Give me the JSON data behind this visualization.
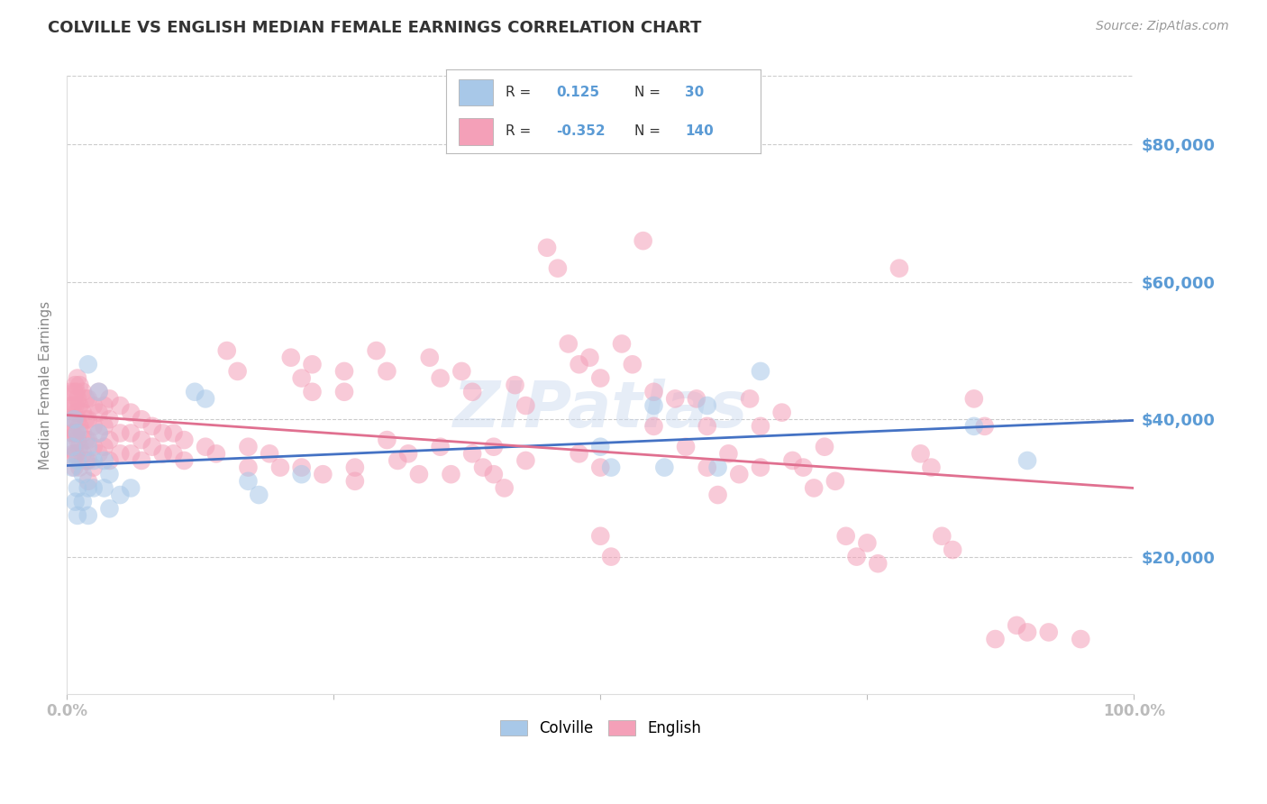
{
  "title": "COLVILLE VS ENGLISH MEDIAN FEMALE EARNINGS CORRELATION CHART",
  "source": "Source: ZipAtlas.com",
  "ylabel": "Median Female Earnings",
  "ytick_labels": [
    "$20,000",
    "$40,000",
    "$60,000",
    "$80,000"
  ],
  "ytick_values": [
    20000,
    40000,
    60000,
    80000
  ],
  "ylim": [
    0,
    90000
  ],
  "xlim": [
    0.0,
    1.0
  ],
  "colville_color": "#a8c8e8",
  "english_color": "#f4a0b8",
  "colville_line_color": "#4472c4",
  "english_line_color": "#e07090",
  "axis_label_color": "#5b9bd5",
  "grid_color": "#cccccc",
  "background_color": "#ffffff",
  "title_color": "#333333",
  "source_color": "#999999",
  "ylabel_color": "#888888",
  "colville_scatter": [
    [
      0.005,
      36000
    ],
    [
      0.005,
      33000
    ],
    [
      0.007,
      40000
    ],
    [
      0.008,
      28000
    ],
    [
      0.01,
      38000
    ],
    [
      0.01,
      34000
    ],
    [
      0.01,
      30000
    ],
    [
      0.01,
      26000
    ],
    [
      0.015,
      32000
    ],
    [
      0.015,
      28000
    ],
    [
      0.02,
      48000
    ],
    [
      0.02,
      36000
    ],
    [
      0.02,
      30000
    ],
    [
      0.02,
      26000
    ],
    [
      0.025,
      34000
    ],
    [
      0.025,
      30000
    ],
    [
      0.03,
      44000
    ],
    [
      0.03,
      38000
    ],
    [
      0.035,
      34000
    ],
    [
      0.035,
      30000
    ],
    [
      0.04,
      32000
    ],
    [
      0.04,
      27000
    ],
    [
      0.05,
      29000
    ],
    [
      0.06,
      30000
    ],
    [
      0.12,
      44000
    ],
    [
      0.13,
      43000
    ],
    [
      0.17,
      31000
    ],
    [
      0.18,
      29000
    ],
    [
      0.22,
      32000
    ],
    [
      0.5,
      36000
    ],
    [
      0.51,
      33000
    ],
    [
      0.55,
      42000
    ],
    [
      0.56,
      33000
    ],
    [
      0.6,
      42000
    ],
    [
      0.61,
      33000
    ],
    [
      0.65,
      47000
    ],
    [
      0.85,
      39000
    ],
    [
      0.9,
      34000
    ]
  ],
  "english_scatter": [
    [
      0.003,
      44000
    ],
    [
      0.004,
      42000
    ],
    [
      0.005,
      40000
    ],
    [
      0.005,
      38000
    ],
    [
      0.006,
      42000
    ],
    [
      0.006,
      38000
    ],
    [
      0.006,
      35000
    ],
    [
      0.007,
      44000
    ],
    [
      0.007,
      40000
    ],
    [
      0.007,
      36000
    ],
    [
      0.007,
      33000
    ],
    [
      0.008,
      45000
    ],
    [
      0.008,
      42000
    ],
    [
      0.008,
      38000
    ],
    [
      0.008,
      35000
    ],
    [
      0.009,
      44000
    ],
    [
      0.009,
      41000
    ],
    [
      0.009,
      38000
    ],
    [
      0.009,
      35000
    ],
    [
      0.01,
      46000
    ],
    [
      0.01,
      43000
    ],
    [
      0.01,
      40000
    ],
    [
      0.01,
      37000
    ],
    [
      0.012,
      45000
    ],
    [
      0.012,
      42000
    ],
    [
      0.012,
      39000
    ],
    [
      0.012,
      36000
    ],
    [
      0.012,
      33000
    ],
    [
      0.015,
      44000
    ],
    [
      0.015,
      41000
    ],
    [
      0.015,
      38000
    ],
    [
      0.015,
      35000
    ],
    [
      0.018,
      43000
    ],
    [
      0.018,
      40000
    ],
    [
      0.018,
      37000
    ],
    [
      0.018,
      34000
    ],
    [
      0.02,
      43000
    ],
    [
      0.02,
      40000
    ],
    [
      0.02,
      37000
    ],
    [
      0.02,
      34000
    ],
    [
      0.02,
      31000
    ],
    [
      0.025,
      42000
    ],
    [
      0.025,
      39000
    ],
    [
      0.025,
      36000
    ],
    [
      0.025,
      33000
    ],
    [
      0.03,
      44000
    ],
    [
      0.03,
      41000
    ],
    [
      0.03,
      38000
    ],
    [
      0.03,
      35000
    ],
    [
      0.035,
      42000
    ],
    [
      0.035,
      39000
    ],
    [
      0.035,
      36000
    ],
    [
      0.04,
      43000
    ],
    [
      0.04,
      40000
    ],
    [
      0.04,
      37000
    ],
    [
      0.04,
      34000
    ],
    [
      0.05,
      42000
    ],
    [
      0.05,
      38000
    ],
    [
      0.05,
      35000
    ],
    [
      0.06,
      41000
    ],
    [
      0.06,
      38000
    ],
    [
      0.06,
      35000
    ],
    [
      0.07,
      40000
    ],
    [
      0.07,
      37000
    ],
    [
      0.07,
      34000
    ],
    [
      0.08,
      39000
    ],
    [
      0.08,
      36000
    ],
    [
      0.09,
      38000
    ],
    [
      0.09,
      35000
    ],
    [
      0.1,
      38000
    ],
    [
      0.1,
      35000
    ],
    [
      0.11,
      37000
    ],
    [
      0.11,
      34000
    ],
    [
      0.13,
      36000
    ],
    [
      0.14,
      35000
    ],
    [
      0.15,
      50000
    ],
    [
      0.16,
      47000
    ],
    [
      0.17,
      36000
    ],
    [
      0.17,
      33000
    ],
    [
      0.19,
      35000
    ],
    [
      0.2,
      33000
    ],
    [
      0.21,
      49000
    ],
    [
      0.22,
      46000
    ],
    [
      0.22,
      33000
    ],
    [
      0.23,
      48000
    ],
    [
      0.23,
      44000
    ],
    [
      0.24,
      32000
    ],
    [
      0.26,
      47000
    ],
    [
      0.26,
      44000
    ],
    [
      0.27,
      33000
    ],
    [
      0.27,
      31000
    ],
    [
      0.29,
      50000
    ],
    [
      0.3,
      47000
    ],
    [
      0.3,
      37000
    ],
    [
      0.31,
      34000
    ],
    [
      0.32,
      35000
    ],
    [
      0.33,
      32000
    ],
    [
      0.34,
      49000
    ],
    [
      0.35,
      46000
    ],
    [
      0.35,
      36000
    ],
    [
      0.36,
      32000
    ],
    [
      0.37,
      47000
    ],
    [
      0.38,
      44000
    ],
    [
      0.38,
      35000
    ],
    [
      0.39,
      33000
    ],
    [
      0.4,
      36000
    ],
    [
      0.4,
      32000
    ],
    [
      0.41,
      30000
    ],
    [
      0.42,
      45000
    ],
    [
      0.43,
      42000
    ],
    [
      0.43,
      34000
    ],
    [
      0.45,
      65000
    ],
    [
      0.46,
      62000
    ],
    [
      0.47,
      51000
    ],
    [
      0.48,
      48000
    ],
    [
      0.48,
      35000
    ],
    [
      0.49,
      49000
    ],
    [
      0.5,
      46000
    ],
    [
      0.5,
      33000
    ],
    [
      0.5,
      23000
    ],
    [
      0.51,
      20000
    ],
    [
      0.52,
      51000
    ],
    [
      0.53,
      48000
    ],
    [
      0.54,
      66000
    ],
    [
      0.55,
      44000
    ],
    [
      0.55,
      39000
    ],
    [
      0.57,
      43000
    ],
    [
      0.58,
      36000
    ],
    [
      0.59,
      43000
    ],
    [
      0.6,
      39000
    ],
    [
      0.6,
      33000
    ],
    [
      0.61,
      29000
    ],
    [
      0.62,
      35000
    ],
    [
      0.63,
      32000
    ],
    [
      0.64,
      43000
    ],
    [
      0.65,
      39000
    ],
    [
      0.65,
      33000
    ],
    [
      0.67,
      41000
    ],
    [
      0.68,
      34000
    ],
    [
      0.69,
      33000
    ],
    [
      0.7,
      30000
    ],
    [
      0.71,
      36000
    ],
    [
      0.72,
      31000
    ],
    [
      0.73,
      23000
    ],
    [
      0.74,
      20000
    ],
    [
      0.75,
      22000
    ],
    [
      0.76,
      19000
    ],
    [
      0.78,
      62000
    ],
    [
      0.8,
      35000
    ],
    [
      0.81,
      33000
    ],
    [
      0.82,
      23000
    ],
    [
      0.83,
      21000
    ],
    [
      0.85,
      43000
    ],
    [
      0.86,
      39000
    ],
    [
      0.87,
      8000
    ],
    [
      0.89,
      10000
    ],
    [
      0.9,
      9000
    ],
    [
      0.92,
      9000
    ],
    [
      0.95,
      8000
    ]
  ]
}
